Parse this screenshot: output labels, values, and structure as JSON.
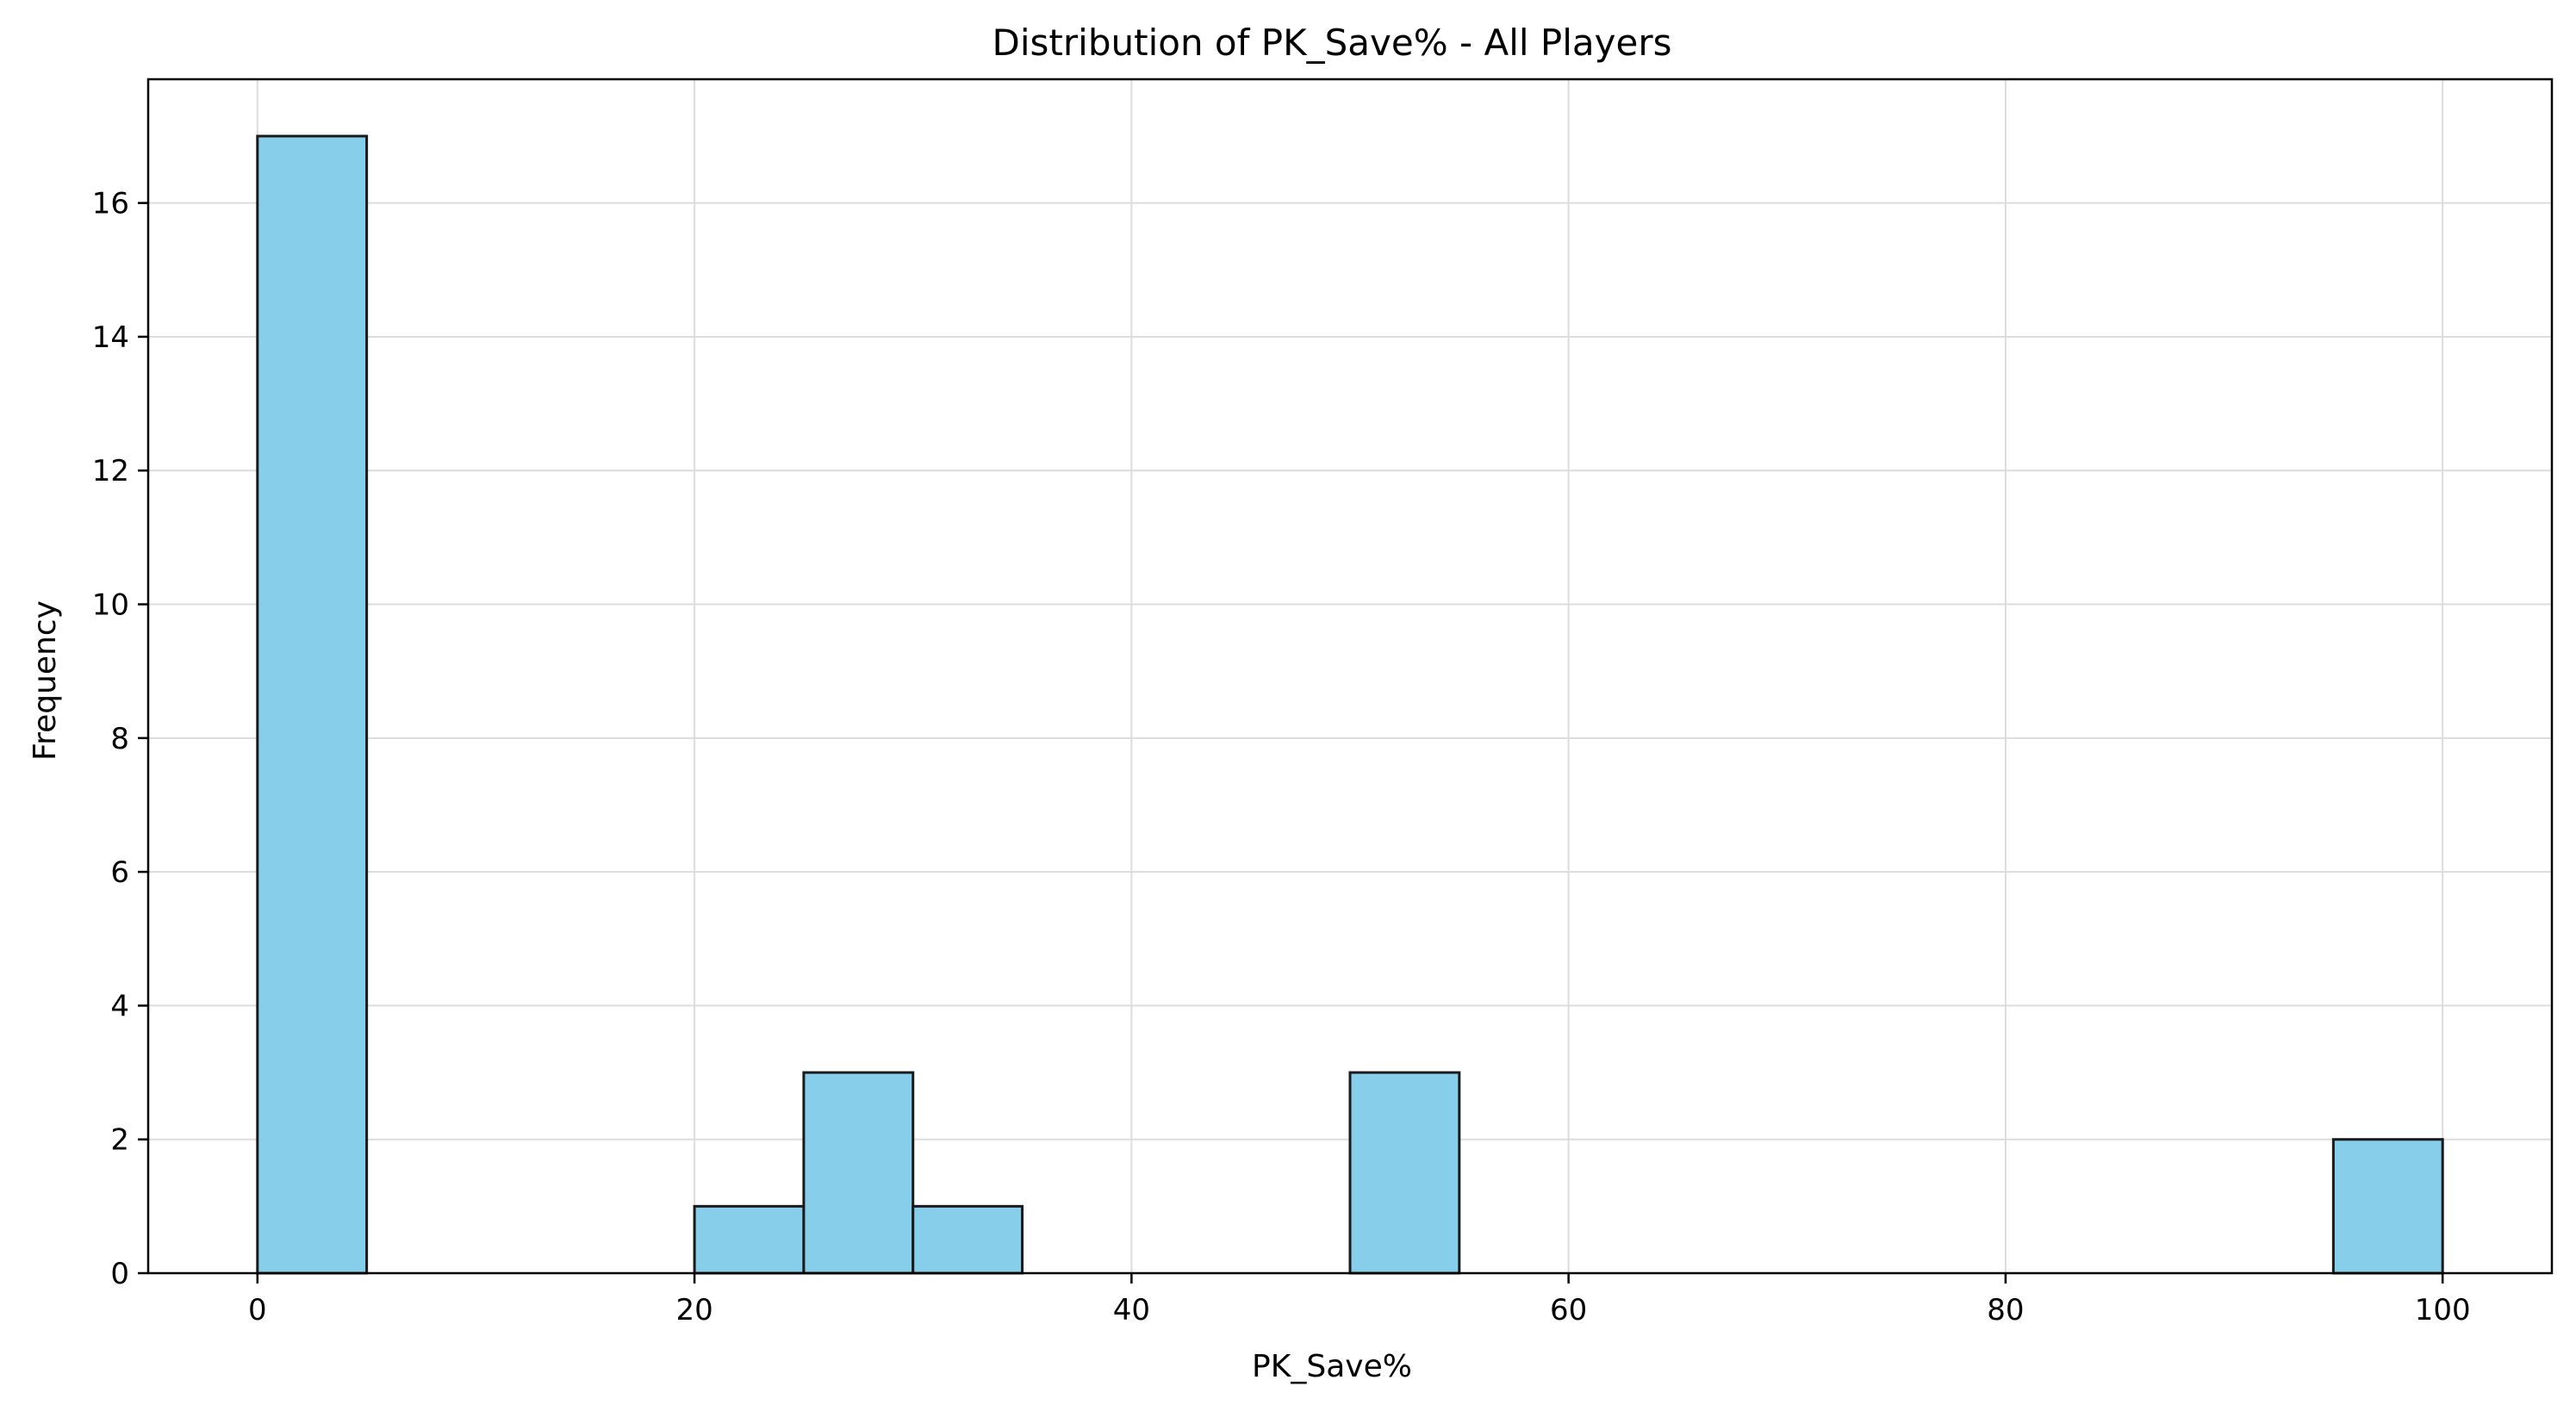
{
  "chart_data": {
    "type": "bar",
    "title": "Distribution of PK_Save% - All Players",
    "xlabel": "PK_Save%",
    "ylabel": "Frequency",
    "xlim": [
      -5,
      105
    ],
    "ylim": [
      0,
      17.85
    ],
    "xticks": [
      0,
      20,
      40,
      60,
      80,
      100
    ],
    "yticks": [
      0,
      2,
      4,
      6,
      8,
      10,
      12,
      14,
      16
    ],
    "grid": true,
    "bar_color": "#87CEEB",
    "edge_color": "#1a1a1a",
    "bins": [
      {
        "x0": 0,
        "x1": 5,
        "count": 17
      },
      {
        "x0": 5,
        "x1": 10,
        "count": 0
      },
      {
        "x0": 10,
        "x1": 15,
        "count": 0
      },
      {
        "x0": 15,
        "x1": 20,
        "count": 0
      },
      {
        "x0": 20,
        "x1": 25,
        "count": 1
      },
      {
        "x0": 25,
        "x1": 30,
        "count": 3
      },
      {
        "x0": 30,
        "x1": 35,
        "count": 1
      },
      {
        "x0": 35,
        "x1": 40,
        "count": 0
      },
      {
        "x0": 40,
        "x1": 45,
        "count": 0
      },
      {
        "x0": 45,
        "x1": 50,
        "count": 0
      },
      {
        "x0": 50,
        "x1": 55,
        "count": 3
      },
      {
        "x0": 55,
        "x1": 60,
        "count": 0
      },
      {
        "x0": 60,
        "x1": 65,
        "count": 0
      },
      {
        "x0": 65,
        "x1": 70,
        "count": 0
      },
      {
        "x0": 70,
        "x1": 75,
        "count": 0
      },
      {
        "x0": 75,
        "x1": 80,
        "count": 0
      },
      {
        "x0": 80,
        "x1": 85,
        "count": 0
      },
      {
        "x0": 85,
        "x1": 90,
        "count": 0
      },
      {
        "x0": 90,
        "x1": 95,
        "count": 0
      },
      {
        "x0": 95,
        "x1": 100,
        "count": 2
      }
    ]
  }
}
